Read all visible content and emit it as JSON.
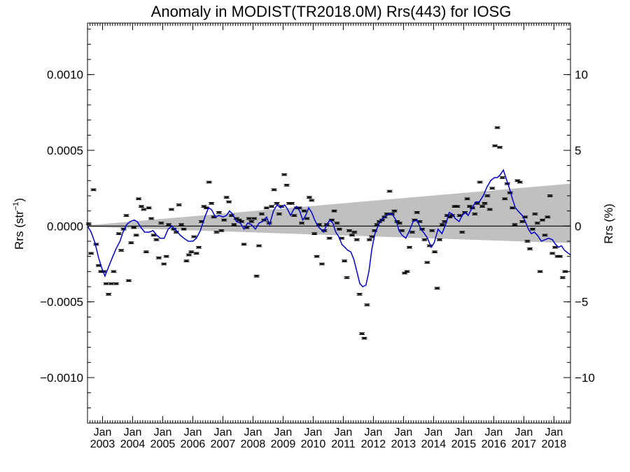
{
  "chart_data": {
    "type": "scatter",
    "title": "Anomaly in MODIST(TR2018.0M) Rrs(443) for IOSG",
    "ylabel_left": "Rrs (str",
    "ylabel_left_sup": "−1",
    "ylabel_left_close": ")",
    "ylabel_right": "Rrs (%)",
    "xlim": [
      2002.5,
      2018.55
    ],
    "ylim": [
      -0.0013,
      0.00134
    ],
    "ylim_right": [
      -13,
      13.4
    ],
    "left_ticks": [
      {
        "v": 0.001,
        "label": "0.0010"
      },
      {
        "v": 0.0005,
        "label": "0.0005"
      },
      {
        "v": 0.0,
        "label": "0.0000"
      },
      {
        "v": -0.0005,
        "label": "−0.0005"
      },
      {
        "v": -0.001,
        "label": "−0.0010"
      }
    ],
    "right_ticks": [
      {
        "v": 10,
        "label": "10"
      },
      {
        "v": 5,
        "label": "5"
      },
      {
        "v": 0,
        "label": "0"
      },
      {
        "v": -5,
        "label": "−5"
      },
      {
        "v": -10,
        "label": "−10"
      }
    ],
    "x_ticks": [
      {
        "v": 2003,
        "month": "Jan",
        "year": "2003"
      },
      {
        "v": 2004,
        "month": "Jan",
        "year": "2004"
      },
      {
        "v": 2005,
        "month": "Jan",
        "year": "2005"
      },
      {
        "v": 2006,
        "month": "Jan",
        "year": "2006"
      },
      {
        "v": 2007,
        "month": "Jan",
        "year": "2007"
      },
      {
        "v": 2008,
        "month": "Jan",
        "year": "2008"
      },
      {
        "v": 2009,
        "month": "Jan",
        "year": "2009"
      },
      {
        "v": 2010,
        "month": "Jan",
        "year": "2010"
      },
      {
        "v": 2011,
        "month": "Jan",
        "year": "2011"
      },
      {
        "v": 2012,
        "month": "Jan",
        "year": "2012"
      },
      {
        "v": 2013,
        "month": "Jan",
        "year": "2013"
      },
      {
        "v": 2014,
        "month": "Jan",
        "year": "2014"
      },
      {
        "v": 2015,
        "month": "Jan",
        "year": "2015"
      },
      {
        "v": 2016,
        "month": "Jan",
        "year": "2016"
      },
      {
        "v": 2017,
        "month": "Jan",
        "year": "2017"
      },
      {
        "v": 2018,
        "month": "Jan",
        "year": "2018"
      }
    ],
    "band": {
      "x": [
        2002.5,
        2018.55
      ],
      "upper": [
        5e-06,
        0.00028
      ],
      "lower": [
        -5e-06,
        -0.000112
      ]
    },
    "zero_line": 0,
    "colors": {
      "line": "#0000cc",
      "band": "#c0c0c0",
      "points": "#000000",
      "axis": "#000000"
    },
    "points": [
      [
        2002.54,
        1.5e-05
      ],
      [
        2002.62,
        -0.00018
      ],
      [
        2002.7,
        0.00024
      ],
      [
        2002.79,
        -0.00012
      ],
      [
        2002.87,
        -0.00026
      ],
      [
        2002.95,
        -0.0003
      ],
      [
        2003.04,
        -0.0003
      ],
      [
        2003.12,
        -0.00038
      ],
      [
        2003.2,
        -0.00045
      ],
      [
        2003.29,
        -0.00038
      ],
      [
        2003.37,
        -0.0003
      ],
      [
        2003.45,
        -0.00038
      ],
      [
        2003.54,
        -5e-05
      ],
      [
        2003.62,
        -0.00016
      ],
      [
        2003.7,
        -2e-05
      ],
      [
        2003.79,
        7e-05
      ],
      [
        2003.87,
        -0.00036
      ],
      [
        2003.95,
        -0.00011
      ],
      [
        2004.04,
        -1e-05
      ],
      [
        2004.12,
        -6e-05
      ],
      [
        2004.2,
        0.00018
      ],
      [
        2004.29,
        0.00013
      ],
      [
        2004.37,
        0.00011
      ],
      [
        2004.45,
        -0.00017
      ],
      [
        2004.54,
        0.00012
      ],
      [
        2004.62,
        5e-05
      ],
      [
        2004.7,
        -6e-05
      ],
      [
        2004.79,
        -9e-05
      ],
      [
        2004.87,
        -0.00021
      ],
      [
        2004.95,
        2e-05
      ],
      [
        2005.04,
        -0.00025
      ],
      [
        2005.12,
        -0.0002
      ],
      [
        2005.2,
        1e-05
      ],
      [
        2005.29,
        0.00011
      ],
      [
        2005.37,
        -2e-05
      ],
      [
        2005.45,
        -4e-05
      ],
      [
        2005.54,
        0.00014
      ],
      [
        2005.62,
        1e-05
      ],
      [
        2005.7,
        -2e-05
      ],
      [
        2005.79,
        -0.00023
      ],
      [
        2005.87,
        -0.00019
      ],
      [
        2005.95,
        -0.00017
      ],
      [
        2006.04,
        -7e-05
      ],
      [
        2006.12,
        -0.00018
      ],
      [
        2006.2,
        -0.00014
      ],
      [
        2006.29,
        3e-05
      ],
      [
        2006.37,
        0.00013
      ],
      [
        2006.45,
        0.00012
      ],
      [
        2006.54,
        0.00029
      ],
      [
        2006.62,
        0.00015
      ],
      [
        2006.7,
        6e-05
      ],
      [
        2006.79,
        -4e-05
      ],
      [
        2006.87,
        9e-05
      ],
      [
        2006.95,
        -3e-05
      ],
      [
        2007.04,
        4e-05
      ],
      [
        2007.12,
        0.00019
      ],
      [
        2007.2,
        0.00016
      ],
      [
        2007.29,
        7e-05
      ],
      [
        2007.37,
        1e-05
      ],
      [
        2007.45,
        5e-05
      ],
      [
        2007.54,
        4e-05
      ],
      [
        2007.62,
        3e-05
      ],
      [
        2007.7,
        -0.00012
      ],
      [
        2007.79,
        -1e-05
      ],
      [
        2007.87,
        5e-05
      ],
      [
        2007.95,
        3e-05
      ],
      [
        2008.04,
        5e-05
      ],
      [
        2008.12,
        -0.00033
      ],
      [
        2008.2,
        -0.00013
      ],
      [
        2008.29,
        8e-05
      ],
      [
        2008.37,
        4e-05
      ],
      [
        2008.45,
        0.00012
      ],
      [
        2008.54,
        2e-05
      ],
      [
        2008.62,
        0.00013
      ],
      [
        2008.7,
        0.00024
      ],
      [
        2008.79,
        0.00015
      ],
      [
        2008.87,
        8e-05
      ],
      [
        2008.95,
        0.00013
      ],
      [
        2009.04,
        0.00034
      ],
      [
        2009.12,
        0.00027
      ],
      [
        2009.2,
        0.00015
      ],
      [
        2009.29,
        0.00015
      ],
      [
        2009.37,
        7e-05
      ],
      [
        2009.45,
        0.00012
      ],
      [
        2009.54,
        0.00012
      ],
      [
        2009.62,
        2e-05
      ],
      [
        2009.7,
        0.0001
      ],
      [
        2009.79,
        5e-05
      ],
      [
        2009.87,
        0.00019
      ],
      [
        2009.95,
        0.00017
      ],
      [
        2010.04,
        -5e-05
      ],
      [
        2010.12,
        -0.0002
      ],
      [
        2010.2,
        1e-05
      ],
      [
        2010.29,
        -0.00025
      ],
      [
        2010.37,
        -3e-05
      ],
      [
        2010.45,
        1e-05
      ],
      [
        2010.54,
        -8e-05
      ],
      [
        2010.62,
        4e-05
      ],
      [
        2010.7,
        0.0001
      ],
      [
        2010.79,
        2e-05
      ],
      [
        2010.87,
        -2e-05
      ],
      [
        2010.95,
        -8e-05
      ],
      [
        2011.04,
        -0.00023
      ],
      [
        2011.12,
        -0.00034
      ],
      [
        2011.2,
        -3e-05
      ],
      [
        2011.29,
        -6e-05
      ],
      [
        2011.37,
        -4e-05
      ],
      [
        2011.45,
        -9e-05
      ],
      [
        2011.54,
        -0.00045
      ],
      [
        2011.62,
        -0.00071
      ],
      [
        2011.7,
        -0.00074
      ],
      [
        2011.79,
        -0.00052
      ],
      [
        2011.87,
        -9e-05
      ],
      [
        2011.95,
        -7e-05
      ],
      [
        2012.04,
        -3e-05
      ],
      [
        2012.12,
        1e-05
      ],
      [
        2012.2,
        3e-05
      ],
      [
        2012.29,
        4e-05
      ],
      [
        2012.37,
        6e-05
      ],
      [
        2012.45,
        8e-05
      ],
      [
        2012.54,
        0.00023
      ],
      [
        2012.62,
        8e-05
      ],
      [
        2012.7,
        0.0001
      ],
      [
        2012.79,
        3e-05
      ],
      [
        2012.87,
        2e-05
      ],
      [
        2012.95,
        -3e-05
      ],
      [
        2013.04,
        -0.00031
      ],
      [
        2013.12,
        -0.0003
      ],
      [
        2013.2,
        -0.00014
      ],
      [
        2013.29,
        -4e-05
      ],
      [
        2013.37,
        4e-05
      ],
      [
        2013.45,
        9e-05
      ],
      [
        2013.54,
        3e-05
      ],
      [
        2013.62,
        -2e-05
      ],
      [
        2013.7,
        -9e-05
      ],
      [
        2013.79,
        -0.00024
      ],
      [
        2013.87,
        -0.00013
      ],
      [
        2013.95,
        -3e-05
      ],
      [
        2014.04,
        -0.00017
      ],
      [
        2014.12,
        -0.00041
      ],
      [
        2014.2,
        -9e-05
      ],
      [
        2014.29,
        1e-05
      ],
      [
        2014.37,
        3e-05
      ],
      [
        2014.45,
        7e-05
      ],
      [
        2014.54,
        6e-05
      ],
      [
        2014.62,
        7e-05
      ],
      [
        2014.7,
        0.00013
      ],
      [
        2014.79,
        0.00013
      ],
      [
        2014.87,
        7e-05
      ],
      [
        2014.95,
        -4e-05
      ],
      [
        2015.04,
        9e-05
      ],
      [
        2015.12,
        0.00018
      ],
      [
        2015.2,
        0.00013
      ],
      [
        2015.29,
        0.00012
      ],
      [
        2015.37,
        8e-05
      ],
      [
        2015.45,
        0.00015
      ],
      [
        2015.54,
        0.00029
      ],
      [
        2015.62,
        0.00013
      ],
      [
        2015.7,
        0.00015
      ],
      [
        2015.79,
        0.0002
      ],
      [
        2015.87,
        0.00011
      ],
      [
        2015.95,
        0.00025
      ],
      [
        2016.04,
        0.00053
      ],
      [
        2016.12,
        0.00065
      ],
      [
        2016.2,
        0.00052
      ],
      [
        2016.29,
        0.00032
      ],
      [
        2016.37,
        0.00018
      ],
      [
        2016.45,
        0.00028
      ],
      [
        2016.54,
        0.00022
      ],
      [
        2016.62,
        0.00012
      ],
      [
        2016.7,
        1e-05
      ],
      [
        2016.79,
        0.0003
      ],
      [
        2016.87,
        0.00029
      ],
      [
        2016.95,
        3e-05
      ],
      [
        2017.04,
        6e-05
      ],
      [
        2017.12,
        -0.0001
      ],
      [
        2017.2,
        -0.00015
      ],
      [
        2017.29,
        -2e-05
      ],
      [
        2017.37,
        8e-05
      ],
      [
        2017.45,
        2e-05
      ],
      [
        2017.54,
        -0.0003
      ],
      [
        2017.62,
        4e-05
      ],
      [
        2017.7,
        -6e-05
      ],
      [
        2017.79,
        6e-05
      ],
      [
        2017.87,
        0.0002
      ],
      [
        2017.95,
        -0.00018
      ],
      [
        2018.04,
        -0.00014
      ],
      [
        2018.12,
        -0.0002
      ],
      [
        2018.2,
        -0.0002
      ],
      [
        2018.29,
        -0.00034
      ],
      [
        2018.37,
        -0.0003
      ]
    ],
    "line": [
      [
        2002.5,
        0.0
      ],
      [
        2002.62,
        -4e-05
      ],
      [
        2002.75,
        -0.00011
      ],
      [
        2002.87,
        -0.00021
      ],
      [
        2002.98,
        -0.00028
      ],
      [
        2003.08,
        -0.00033
      ],
      [
        2003.2,
        -0.00027
      ],
      [
        2003.32,
        -0.00021
      ],
      [
        2003.45,
        -0.00015
      ],
      [
        2003.58,
        -0.0001
      ],
      [
        2003.68,
        -4e-05
      ],
      [
        2003.8,
        1e-05
      ],
      [
        2003.92,
        3e-05
      ],
      [
        2004.05,
        4e-05
      ],
      [
        2004.15,
        3e-05
      ],
      [
        2004.28,
        -1e-05
      ],
      [
        2004.4,
        -4e-05
      ],
      [
        2004.55,
        -4e-05
      ],
      [
        2004.68,
        -3e-05
      ],
      [
        2004.8,
        -6e-05
      ],
      [
        2004.92,
        -8e-05
      ],
      [
        2005.05,
        -8e-05
      ],
      [
        2005.18,
        -2e-05
      ],
      [
        2005.3,
        0.0
      ],
      [
        2005.45,
        -3e-05
      ],
      [
        2005.58,
        -6e-05
      ],
      [
        2005.7,
        -8e-05
      ],
      [
        2005.85,
        -0.0001
      ],
      [
        2006.0,
        -0.0001
      ],
      [
        2006.12,
        -8e-05
      ],
      [
        2006.25,
        -3e-05
      ],
      [
        2006.4,
        6e-05
      ],
      [
        2006.52,
        0.00012
      ],
      [
        2006.62,
        0.00011
      ],
      [
        2006.75,
        6e-05
      ],
      [
        2006.87,
        7e-05
      ],
      [
        2007.0,
        6e-05
      ],
      [
        2007.12,
        7e-05
      ],
      [
        2007.22,
        0.0001
      ],
      [
        2007.32,
        8e-05
      ],
      [
        2007.45,
        3e-05
      ],
      [
        2007.58,
        2e-05
      ],
      [
        2007.7,
        -2e-05
      ],
      [
        2007.82,
        2e-05
      ],
      [
        2007.95,
        1e-05
      ],
      [
        2008.08,
        -2e-05
      ],
      [
        2008.2,
        2e-05
      ],
      [
        2008.32,
        3e-05
      ],
      [
        2008.45,
        6e-05
      ],
      [
        2008.55,
        1e-05
      ],
      [
        2008.68,
        0.0001
      ],
      [
        2008.8,
        0.00014
      ],
      [
        2008.92,
        0.00012
      ],
      [
        2009.05,
        0.00014
      ],
      [
        2009.15,
        0.00011
      ],
      [
        2009.25,
        7e-05
      ],
      [
        2009.35,
        0.00011
      ],
      [
        2009.45,
        0.00013
      ],
      [
        2009.55,
        0.0001
      ],
      [
        2009.65,
        4e-05
      ],
      [
        2009.75,
        7e-05
      ],
      [
        2009.85,
        0.00012
      ],
      [
        2009.95,
        9e-05
      ],
      [
        2010.05,
        4e-05
      ],
      [
        2010.15,
        0.0
      ],
      [
        2010.25,
        -2e-05
      ],
      [
        2010.35,
        -4e-05
      ],
      [
        2010.45,
        1e-05
      ],
      [
        2010.55,
        4e-05
      ],
      [
        2010.65,
        2e-05
      ],
      [
        2010.75,
        -4e-05
      ],
      [
        2010.85,
        -7e-05
      ],
      [
        2010.95,
        -0.00012
      ],
      [
        2011.05,
        -0.00014
      ],
      [
        2011.15,
        -0.00016
      ],
      [
        2011.25,
        -0.00017
      ],
      [
        2011.35,
        -0.00022
      ],
      [
        2011.45,
        -0.0003
      ],
      [
        2011.55,
        -0.00038
      ],
      [
        2011.65,
        -0.0004
      ],
      [
        2011.75,
        -0.00039
      ],
      [
        2011.85,
        -0.0003
      ],
      [
        2011.95,
        -0.00015
      ],
      [
        2012.05,
        -5e-05
      ],
      [
        2012.15,
        0.0
      ],
      [
        2012.25,
        4e-05
      ],
      [
        2012.38,
        6e-05
      ],
      [
        2012.5,
        8e-05
      ],
      [
        2012.62,
        8e-05
      ],
      [
        2012.75,
        4e-05
      ],
      [
        2012.85,
        -3e-05
      ],
      [
        2012.95,
        -6e-05
      ],
      [
        2013.08,
        -8e-05
      ],
      [
        2013.2,
        -3e-05
      ],
      [
        2013.32,
        3e-05
      ],
      [
        2013.45,
        4e-05
      ],
      [
        2013.58,
        -2e-05
      ],
      [
        2013.7,
        -5e-05
      ],
      [
        2013.8,
        -8e-05
      ],
      [
        2013.92,
        -0.00014
      ],
      [
        2014.02,
        -0.00011
      ],
      [
        2014.15,
        -2e-05
      ],
      [
        2014.28,
        -5e-05
      ],
      [
        2014.4,
        1e-05
      ],
      [
        2014.52,
        9e-05
      ],
      [
        2014.62,
        8e-05
      ],
      [
        2014.72,
        5e-05
      ],
      [
        2014.85,
        3e-05
      ],
      [
        2014.95,
        7e-05
      ],
      [
        2015.05,
        9e-05
      ],
      [
        2015.15,
        7e-05
      ],
      [
        2015.28,
        0.00012
      ],
      [
        2015.4,
        0.00016
      ],
      [
        2015.52,
        0.00016
      ],
      [
        2015.65,
        0.0002
      ],
      [
        2015.78,
        0.00026
      ],
      [
        2015.9,
        0.0003
      ],
      [
        2016.02,
        0.00032
      ],
      [
        2016.12,
        0.00032
      ],
      [
        2016.22,
        0.00034
      ],
      [
        2016.32,
        0.00037
      ],
      [
        2016.42,
        0.00031
      ],
      [
        2016.52,
        0.00025
      ],
      [
        2016.62,
        0.00018
      ],
      [
        2016.72,
        0.00012
      ],
      [
        2016.85,
        9e-05
      ],
      [
        2016.95,
        7e-05
      ],
      [
        2017.05,
        3e-05
      ],
      [
        2017.15,
        -2e-05
      ],
      [
        2017.25,
        -5e-05
      ],
      [
        2017.35,
        -4e-05
      ],
      [
        2017.45,
        -6e-05
      ],
      [
        2017.58,
        -0.0001
      ],
      [
        2017.7,
        -9e-05
      ],
      [
        2017.82,
        -8e-05
      ],
      [
        2017.95,
        -9e-05
      ],
      [
        2018.05,
        -0.00012
      ],
      [
        2018.15,
        -0.00014
      ],
      [
        2018.25,
        -0.00013
      ],
      [
        2018.35,
        -0.00016
      ],
      [
        2018.48,
        -0.00018
      ],
      [
        2018.55,
        -0.00019
      ]
    ]
  }
}
